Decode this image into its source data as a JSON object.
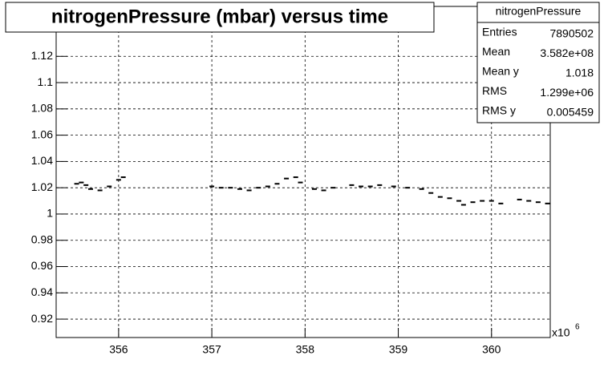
{
  "chart_data": {
    "type": "scatter",
    "title": "nitrogenPressure (mbar) versus time",
    "x_multiplier": {
      "base": "x10",
      "exponent": "6"
    },
    "stats": {
      "title": "nitrogenPressure",
      "rows": [
        [
          "Entries",
          "7890502"
        ],
        [
          "Mean",
          "3.582e+08"
        ],
        [
          "Mean y",
          "1.018"
        ],
        [
          "RMS",
          "1.299e+06"
        ],
        [
          "RMS y",
          "0.005459"
        ]
      ]
    },
    "xlim": [
      355.33,
      360.63
    ],
    "ylim": [
      0.906,
      1.158
    ],
    "xticks": [
      356,
      357,
      358,
      359,
      360
    ],
    "yticks": [
      0.92,
      0.94,
      0.96,
      0.98,
      1,
      1.02,
      1.04,
      1.06,
      1.08,
      1.1,
      1.12
    ],
    "grid": true,
    "color": "#000000",
    "series": [
      {
        "name": "nitrogenPressure",
        "color": "#000000",
        "x": [
          355.55,
          355.6,
          355.65,
          355.7,
          355.8,
          355.9,
          356.0,
          356.05,
          357.0,
          357.1,
          357.2,
          357.3,
          357.4,
          357.5,
          357.6,
          357.7,
          357.8,
          357.9,
          357.95,
          358.1,
          358.2,
          358.3,
          358.5,
          358.6,
          358.7,
          358.8,
          358.95,
          359.1,
          359.25,
          359.35,
          359.45,
          359.55,
          359.65,
          359.7,
          359.8,
          359.9,
          360.0,
          360.1,
          360.3,
          360.4,
          360.5,
          360.6
        ],
        "values": [
          1.023,
          1.024,
          1.022,
          1.019,
          1.018,
          1.021,
          1.026,
          1.028,
          1.021,
          1.02,
          1.02,
          1.019,
          1.018,
          1.02,
          1.021,
          1.023,
          1.027,
          1.028,
          1.024,
          1.019,
          1.018,
          1.02,
          1.022,
          1.021,
          1.021,
          1.022,
          1.021,
          1.02,
          1.019,
          1.016,
          1.013,
          1.012,
          1.01,
          1.007,
          1.009,
          1.01,
          1.01,
          1.008,
          1.011,
          1.01,
          1.009,
          1.008
        ]
      }
    ]
  }
}
